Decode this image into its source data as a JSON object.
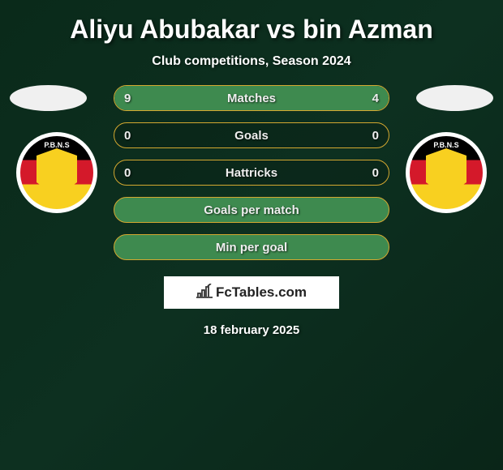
{
  "title": "Aliyu Abubakar vs bin Azman",
  "subtitle": "Club competitions, Season 2024",
  "player_left": {
    "badge_text": "P.B.N.S"
  },
  "player_right": {
    "badge_text": "P.B.N.S"
  },
  "stats": [
    {
      "label": "Matches",
      "left_val": "9",
      "right_val": "4",
      "left_pct": 69,
      "right_pct": 31,
      "show_vals": true,
      "full": false
    },
    {
      "label": "Goals",
      "left_val": "0",
      "right_val": "0",
      "left_pct": 0,
      "right_pct": 0,
      "show_vals": true,
      "full": false
    },
    {
      "label": "Hattricks",
      "left_val": "0",
      "right_val": "0",
      "left_pct": 0,
      "right_pct": 0,
      "show_vals": true,
      "full": false
    },
    {
      "label": "Goals per match",
      "left_val": "",
      "right_val": "",
      "left_pct": 0,
      "right_pct": 0,
      "show_vals": false,
      "full": true
    },
    {
      "label": "Min per goal",
      "left_val": "",
      "right_val": "",
      "left_pct": 0,
      "right_pct": 0,
      "show_vals": false,
      "full": true
    }
  ],
  "watermark": "FcTables.com",
  "date": "18 february 2025",
  "colors": {
    "fill": "#3e8a4f",
    "border": "#d4a830",
    "bg_gradient": [
      "#0a2a1a",
      "#0d3020",
      "#0a2518"
    ],
    "badge_stripes": [
      "#000000",
      "#d4192a",
      "#f8d020"
    ]
  }
}
